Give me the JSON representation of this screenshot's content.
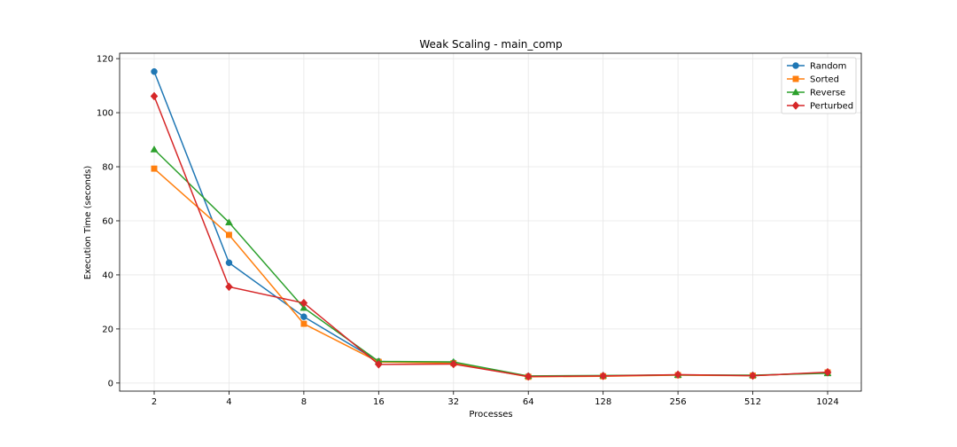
{
  "chart_data": {
    "type": "line",
    "title": "Weak Scaling - main_comp",
    "xlabel": "Processes",
    "ylabel": "Execution Time (seconds)",
    "categories": [
      "2",
      "4",
      "8",
      "16",
      "32",
      "64",
      "128",
      "256",
      "512",
      "1024"
    ],
    "ylim": [
      -3,
      122
    ],
    "yticks": [
      0,
      20,
      40,
      60,
      80,
      100,
      120
    ],
    "grid": true,
    "legend_position": "top-right",
    "series": [
      {
        "name": "Random",
        "color": "#1f77b4",
        "marker": "circle",
        "values": [
          115.2,
          44.5,
          24.5,
          8.0,
          7.5,
          2.5,
          2.6,
          3.0,
          2.8,
          3.8
        ]
      },
      {
        "name": "Sorted",
        "color": "#ff7f0e",
        "marker": "square",
        "values": [
          79.3,
          54.8,
          21.9,
          7.8,
          7.3,
          2.3,
          2.5,
          2.9,
          2.7,
          3.9
        ]
      },
      {
        "name": "Reverse",
        "color": "#2ca02c",
        "marker": "triangle",
        "values": [
          86.4,
          59.4,
          27.8,
          8.0,
          7.8,
          2.6,
          2.8,
          3.0,
          2.9,
          3.6
        ]
      },
      {
        "name": "Perturbed",
        "color": "#d62728",
        "marker": "diamond",
        "values": [
          106.1,
          35.6,
          29.6,
          6.9,
          7.0,
          2.4,
          2.6,
          3.1,
          2.7,
          4.0
        ]
      }
    ]
  }
}
